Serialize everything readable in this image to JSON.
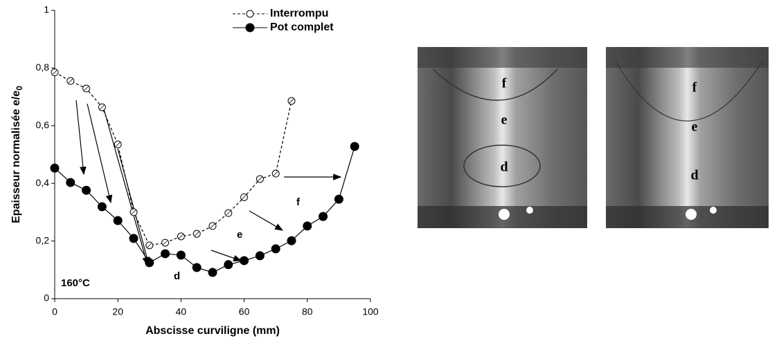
{
  "chart_data": {
    "type": "line",
    "xlabel": "Abscisse curviligne (mm)",
    "ylabel": "Epaisseur normalisée e/e",
    "ylabel_sub": "0",
    "xlim": [
      0,
      100
    ],
    "xticks": [
      0,
      20,
      40,
      60,
      80,
      100
    ],
    "ylim": [
      0,
      1
    ],
    "yticks": [
      0,
      {
        "value": 0.2,
        "label": "0,2"
      },
      {
        "value": 0.4,
        "label": "0,4"
      },
      {
        "value": 0.6,
        "label": "0,6"
      },
      {
        "value": 0.8,
        "label": "0,8"
      },
      1
    ],
    "legend": "top-right",
    "series": [
      {
        "name": "Interrompu",
        "color": "#000000",
        "style": "dashed",
        "marker": "open",
        "x": [
          0,
          5,
          10,
          15,
          20,
          25,
          30,
          35,
          40,
          45,
          50,
          55,
          60,
          65,
          70,
          75
        ],
        "values": [
          0.785,
          0.755,
          0.729,
          0.664,
          0.535,
          0.3,
          0.185,
          0.194,
          0.216,
          0.225,
          0.252,
          0.297,
          0.352,
          0.415,
          0.434,
          0.686
        ]
      },
      {
        "name": "Pot complet",
        "color": "#000000",
        "style": "solid",
        "marker": "filled",
        "x": [
          0,
          5,
          10,
          15,
          20,
          25,
          30,
          35,
          40,
          45,
          50,
          55,
          60,
          65,
          70,
          75,
          80,
          85,
          90,
          95
        ],
        "values": [
          0.453,
          0.403,
          0.376,
          0.319,
          0.271,
          0.209,
          0.125,
          0.156,
          0.151,
          0.108,
          0.091,
          0.118,
          0.132,
          0.149,
          0.173,
          0.201,
          0.252,
          0.285,
          0.345,
          0.528
        ]
      }
    ],
    "annotations": [
      "160°C",
      "d",
      "e",
      "f"
    ]
  },
  "photos": [
    {
      "labels": [
        "f",
        "e",
        "d"
      ]
    },
    {
      "labels": [
        "f",
        "e",
        "d"
      ]
    }
  ]
}
